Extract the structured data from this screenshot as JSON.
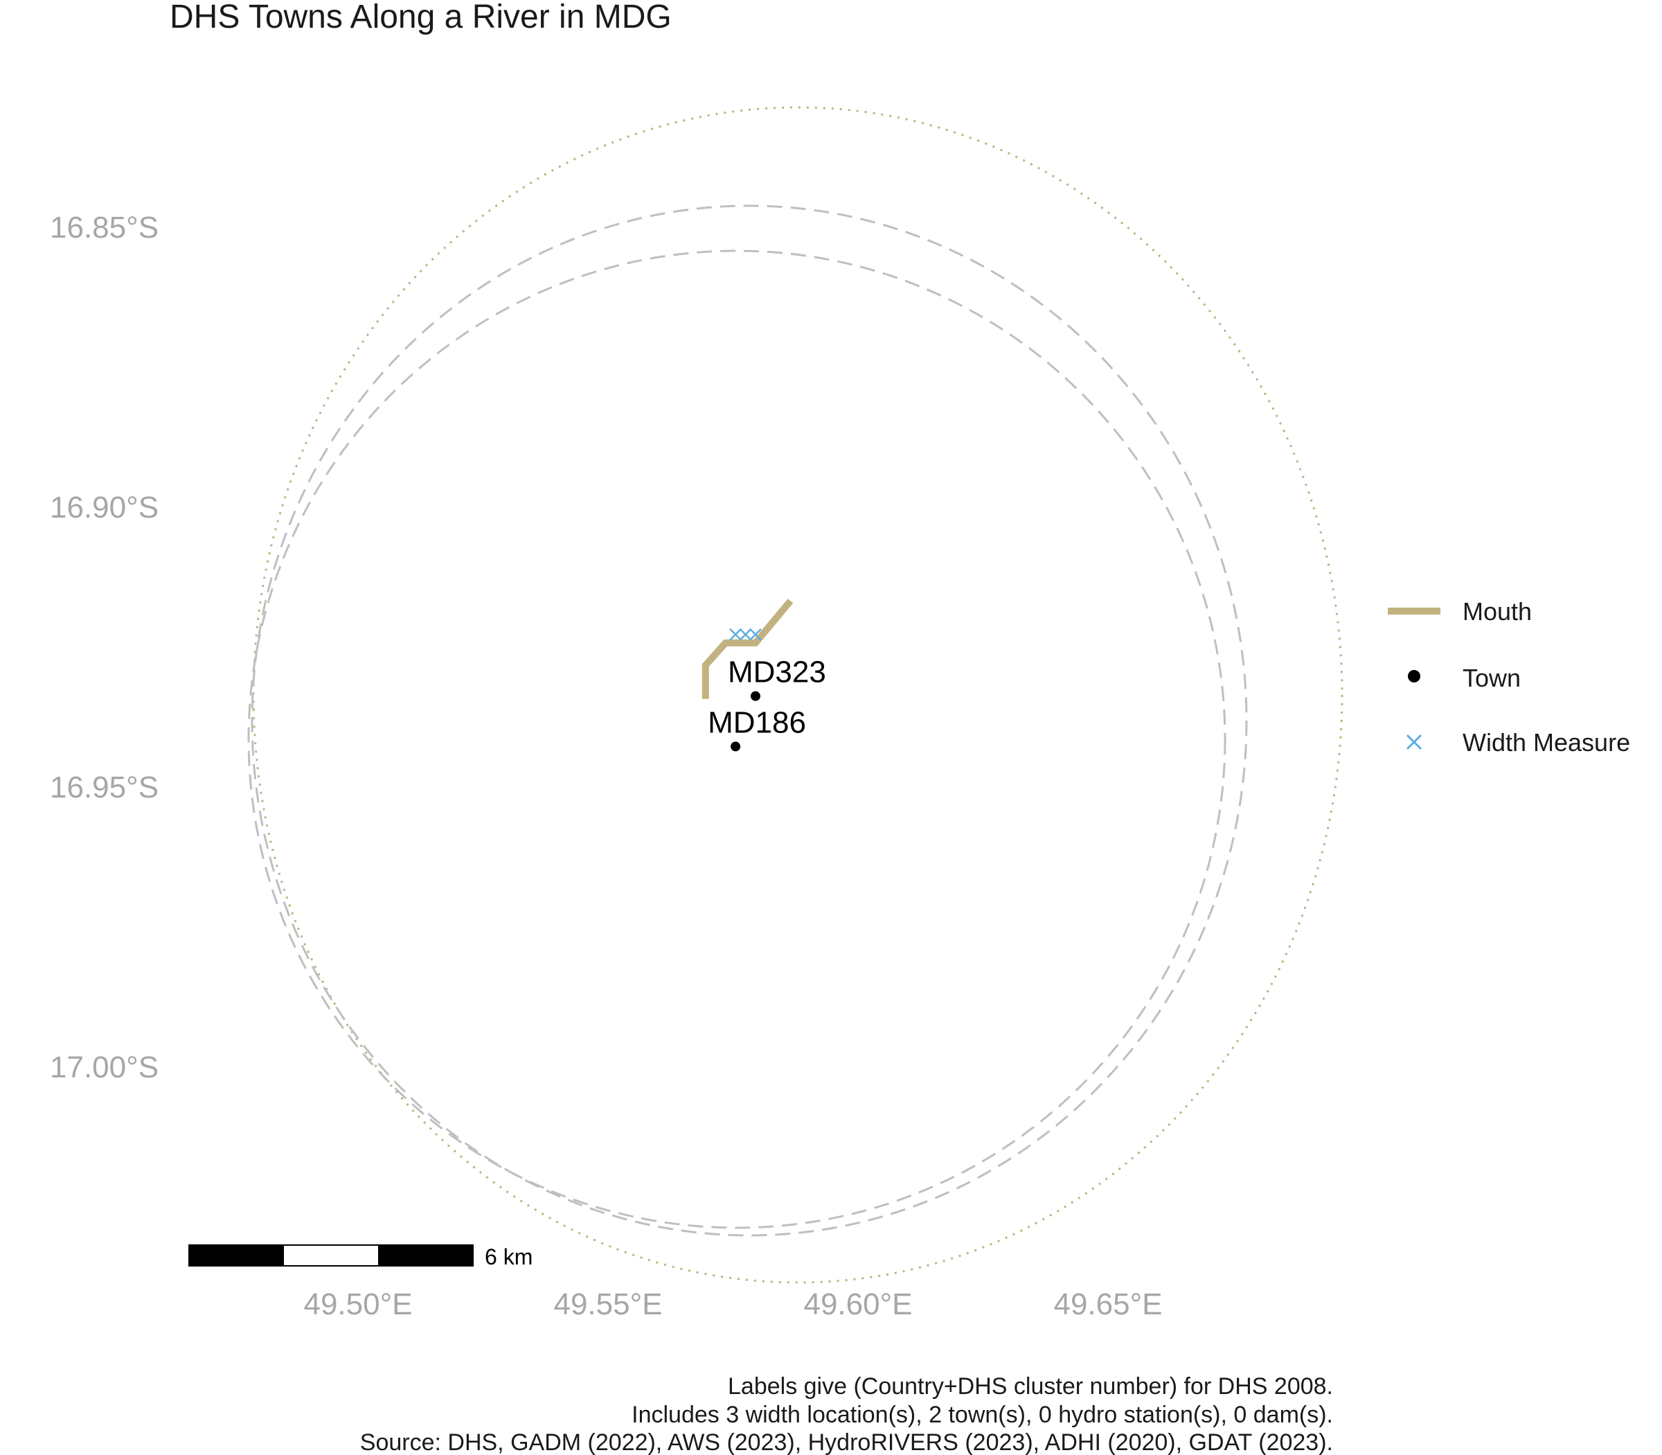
{
  "title": "DHS Towns Along a River in MDG",
  "axes": {
    "y_ticks": [
      "16.85°S",
      "16.90°S",
      "16.95°S",
      "17.00°S"
    ],
    "x_ticks": [
      "49.50°E",
      "49.55°E",
      "49.60°E",
      "49.65°E"
    ]
  },
  "legend": {
    "items": [
      {
        "label": "Mouth",
        "symbol": "line",
        "color": "#C2B280"
      },
      {
        "label": "Town",
        "symbol": "dot",
        "color": "#000000"
      },
      {
        "label": "Width Measure",
        "symbol": "cross",
        "color": "#5DADE2"
      }
    ]
  },
  "towns": [
    {
      "label": "MD323",
      "lon": 49.5795,
      "lat": -16.9335
    },
    {
      "label": "MD186",
      "lon": 49.5755,
      "lat": -16.9425
    }
  ],
  "width_measures": [
    {
      "lon": 49.5755,
      "lat": -16.9225
    },
    {
      "lon": 49.5775,
      "lat": -16.9225
    },
    {
      "lon": 49.5795,
      "lat": -16.9225
    }
  ],
  "river": {
    "name": "Mouth",
    "color": "#C2B280",
    "coords": [
      [
        49.5695,
        -16.934
      ],
      [
        49.5695,
        -16.928
      ],
      [
        49.5735,
        -16.924
      ],
      [
        49.5795,
        -16.924
      ],
      [
        49.5865,
        -16.9165
      ]
    ]
  },
  "scale_bar": {
    "label": "6 km"
  },
  "caption": {
    "lines": [
      "Labels give (Country+DHS cluster number) for DHS 2008.",
      "Includes 3 width location(s), 2 town(s), 0 hydro station(s), 0 dam(s).",
      "Source: DHS, GADM (2022), AWS (2023), HydroRIVERS (2023), ADHI (2020), GDAT (2023)."
    ]
  },
  "colors": {
    "buffer_dashed": "#BFBFBF",
    "buffer_dotted": "#C2B280",
    "axis_text": "#A6A6A6"
  }
}
